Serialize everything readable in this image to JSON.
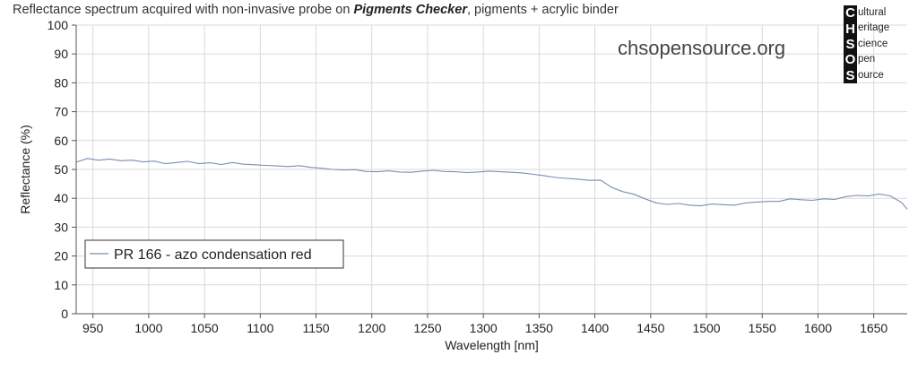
{
  "title": {
    "prefix": "Reflectance spectrum acquired with non-invasive probe on ",
    "emphasis": "Pigments Checker",
    "suffix": ", pigments + acrylic binder"
  },
  "watermark": "chsopensource.org",
  "logo": {
    "rows": [
      {
        "letter": "C",
        "rest": "ultural"
      },
      {
        "letter": "H",
        "rest": "eritage"
      },
      {
        "letter": "S",
        "rest": "cience"
      },
      {
        "letter": "O",
        "rest": "pen"
      },
      {
        "letter": "S",
        "rest": "ource"
      }
    ]
  },
  "colors": {
    "series": "#7a8fad",
    "grid": "#d9d9d9",
    "axis": "#555555"
  },
  "chart_data": {
    "type": "line",
    "title": "Reflectance spectrum acquired with non-invasive probe on Pigments Checker, pigments + acrylic binder",
    "xlabel": "Wavelength [nm]",
    "ylabel": "Reflectance (%)",
    "xlim": [
      935,
      1680
    ],
    "ylim": [
      0,
      100
    ],
    "xticks": [
      950,
      1000,
      1050,
      1100,
      1150,
      1200,
      1250,
      1300,
      1350,
      1400,
      1450,
      1500,
      1550,
      1600,
      1650
    ],
    "yticks": [
      0,
      10,
      20,
      30,
      40,
      50,
      60,
      70,
      80,
      90,
      100
    ],
    "grid": true,
    "legend_position": "bottom-left",
    "series": [
      {
        "name": "PR 166 - azo condensation red",
        "x": [
          935,
          945,
          955,
          965,
          975,
          985,
          995,
          1005,
          1015,
          1025,
          1035,
          1045,
          1055,
          1065,
          1075,
          1085,
          1095,
          1105,
          1115,
          1125,
          1135,
          1145,
          1155,
          1165,
          1175,
          1185,
          1195,
          1205,
          1215,
          1225,
          1235,
          1245,
          1255,
          1265,
          1275,
          1285,
          1295,
          1305,
          1315,
          1325,
          1335,
          1345,
          1355,
          1365,
          1375,
          1385,
          1395,
          1405,
          1415,
          1425,
          1435,
          1445,
          1455,
          1465,
          1475,
          1485,
          1495,
          1505,
          1515,
          1525,
          1535,
          1545,
          1555,
          1565,
          1575,
          1585,
          1595,
          1605,
          1615,
          1625,
          1635,
          1645,
          1655,
          1665,
          1675,
          1680
        ],
        "y": [
          52.5,
          53.8,
          53.2,
          53.6,
          53.0,
          53.2,
          52.6,
          52.9,
          52.0,
          52.4,
          52.8,
          52.0,
          52.3,
          51.7,
          52.4,
          51.8,
          51.6,
          51.4,
          51.2,
          51.0,
          51.3,
          50.7,
          50.4,
          50.0,
          49.8,
          49.9,
          49.3,
          49.2,
          49.5,
          49.1,
          49.0,
          49.4,
          49.7,
          49.3,
          49.2,
          48.9,
          49.1,
          49.4,
          49.2,
          49.0,
          48.8,
          48.3,
          47.8,
          47.2,
          46.9,
          46.6,
          46.2,
          46.3,
          43.8,
          42.3,
          41.4,
          39.8,
          38.4,
          37.9,
          38.2,
          37.6,
          37.4,
          38.0,
          37.8,
          37.6,
          38.4,
          38.7,
          38.9,
          38.9,
          39.8,
          39.5,
          39.3,
          39.8,
          39.6,
          40.6,
          41.0,
          40.8,
          41.5,
          40.8,
          38.5,
          36.2
        ]
      }
    ]
  }
}
